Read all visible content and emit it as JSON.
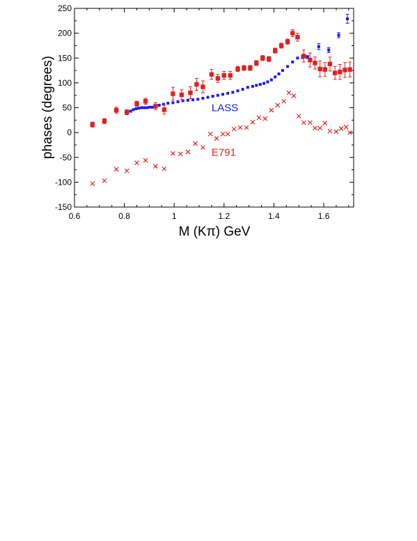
{
  "chart_data": {
    "type": "scatter",
    "title": "",
    "xlabel": "M (Kπ)  GeV",
    "ylabel": "phases  (degrees)",
    "xlim": [
      0.6,
      1.72
    ],
    "ylim": [
      -150,
      250
    ],
    "xticks": [
      0.6,
      0.8,
      1.0,
      1.2,
      1.4,
      1.6
    ],
    "xtick_labels": [
      "0.6",
      "0.8",
      "1",
      "1.2",
      "1.4",
      "1.6"
    ],
    "yticks": [
      -150,
      -100,
      -50,
      0,
      50,
      100,
      150,
      200,
      250
    ],
    "ytick_labels": [
      "-150",
      "-100",
      "-50",
      "0",
      "50",
      "100",
      "150",
      "200",
      "250"
    ],
    "grid": false,
    "annotations": [
      {
        "text": "LASS",
        "x": 1.15,
        "y": 50,
        "color": "#1a1aee"
      },
      {
        "text": "E791",
        "x": 1.15,
        "y": -40,
        "color": "#dd2222"
      }
    ],
    "series": [
      {
        "name": "LASS",
        "marker": "dot",
        "color": "#1a1aee",
        "x": [
          0.825,
          0.836,
          0.847,
          0.858,
          0.869,
          0.88,
          0.891,
          0.902,
          0.913,
          0.925,
          0.94,
          0.957,
          0.975,
          0.995,
          1.015,
          1.035,
          1.055,
          1.075,
          1.095,
          1.115,
          1.135,
          1.155,
          1.175,
          1.195,
          1.215,
          1.235,
          1.255,
          1.275,
          1.295,
          1.315,
          1.33,
          1.345,
          1.36,
          1.375,
          1.39,
          1.405,
          1.42,
          1.435,
          1.455,
          1.475,
          1.495,
          1.515,
          1.535,
          1.58,
          1.62,
          1.66,
          1.695
        ],
        "y": [
          43,
          46,
          48,
          49,
          50,
          50,
          50,
          51,
          51,
          52,
          55,
          57,
          59,
          60,
          62,
          64,
          65,
          66,
          67,
          69,
          71,
          73,
          75,
          77,
          79,
          81,
          84,
          87,
          91,
          93,
          95,
          97,
          99,
          102,
          106,
          112,
          118,
          125,
          133,
          142,
          150,
          152,
          152,
          173,
          166,
          196,
          229
        ],
        "err": [
          1,
          1,
          1,
          1,
          1,
          1,
          1,
          1,
          1,
          1,
          1,
          1,
          1,
          1,
          1,
          1,
          1,
          1,
          1,
          1,
          1,
          1,
          1,
          1,
          1,
          1,
          1,
          1,
          1,
          2,
          2,
          2,
          2,
          2,
          2,
          2,
          2,
          2,
          2,
          2,
          2,
          3,
          3,
          6,
          5,
          5,
          9
        ]
      },
      {
        "name": "E791",
        "marker": "square",
        "color": "#dd2222",
        "x": [
          0.672,
          0.72,
          0.768,
          0.81,
          0.85,
          0.885,
          0.925,
          0.96,
          0.995,
          1.03,
          1.065,
          1.09,
          1.115,
          1.15,
          1.175,
          1.2,
          1.225,
          1.255,
          1.28,
          1.305,
          1.33,
          1.355,
          1.38,
          1.405,
          1.43,
          1.455,
          1.475,
          1.495,
          1.52,
          1.545,
          1.565,
          1.585,
          1.605,
          1.625,
          1.645,
          1.665,
          1.685,
          1.705
        ],
        "y": [
          16,
          23,
          45,
          41,
          58,
          63,
          53,
          46,
          78,
          76,
          80,
          97,
          92,
          117,
          109,
          115,
          115,
          128,
          130,
          130,
          140,
          150,
          148,
          165,
          175,
          183,
          200,
          192,
          154,
          146,
          140,
          128,
          127,
          138,
          120,
          122,
          126,
          127
        ],
        "err": [
          5,
          5,
          6,
          5,
          5,
          6,
          7,
          9,
          13,
          10,
          12,
          12,
          12,
          10,
          8,
          8,
          8,
          5,
          5,
          5,
          5,
          5,
          5,
          5,
          5,
          5,
          7,
          8,
          12,
          14,
          12,
          16,
          14,
          14,
          13,
          15,
          15,
          15
        ]
      },
      {
        "name": "E791",
        "marker": "cross",
        "color": "#dd2222",
        "x": [
          0.672,
          0.72,
          0.768,
          0.81,
          0.85,
          0.885,
          0.925,
          0.96,
          0.995,
          1.025,
          1.055,
          1.085,
          1.115,
          1.145,
          1.17,
          1.195,
          1.215,
          1.24,
          1.265,
          1.29,
          1.315,
          1.34,
          1.365,
          1.39,
          1.415,
          1.44,
          1.46,
          1.48,
          1.5,
          1.52,
          1.545,
          1.565,
          1.585,
          1.605,
          1.625,
          1.65,
          1.67,
          1.69,
          1.705
        ],
        "y": [
          -103,
          -97,
          -74,
          -77,
          -61,
          -56,
          -68,
          -73,
          -42,
          -43,
          -39,
          -22,
          -30,
          -3,
          -12,
          -3,
          -3,
          7,
          10,
          10,
          21,
          30,
          28,
          45,
          55,
          63,
          80,
          74,
          33,
          20,
          20,
          9,
          9,
          19,
          3,
          2,
          8,
          11,
          0
        ]
      }
    ]
  }
}
